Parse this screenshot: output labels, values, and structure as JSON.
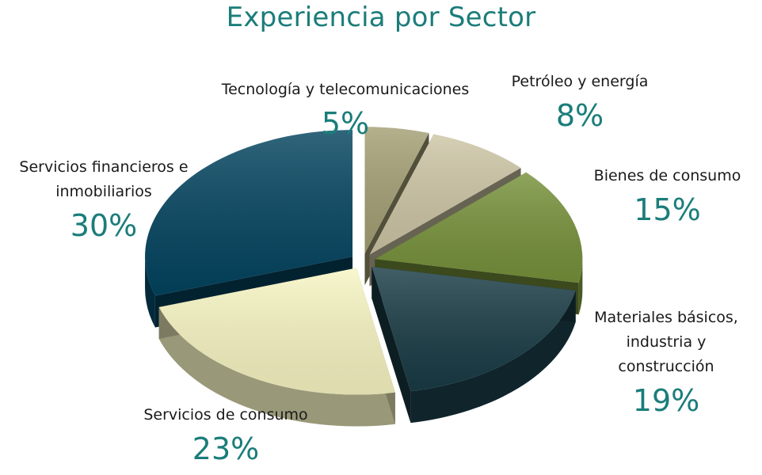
{
  "chart_data": {
    "type": "pie",
    "title": "Experiencia por Sector",
    "slices": [
      {
        "label": "Tecnología y telecomunicaciones",
        "value": 5,
        "value_label": "5%",
        "color": "#a39f74",
        "exploded": true
      },
      {
        "label": "Petróleo y energía",
        "value": 8,
        "value_label": "8%",
        "color": "#cdc5a5",
        "exploded": true
      },
      {
        "label": "Bienes de consumo",
        "value": 15,
        "value_label": "15%",
        "color": "#76913a",
        "exploded": true
      },
      {
        "label": "Materiales básicos, industria y construcción",
        "value": 19,
        "value_label": "19%",
        "color": "#193b45",
        "exploded": true
      },
      {
        "label": "Servicios de consumo",
        "value": 23,
        "value_label": "23%",
        "color": "#f7f5c2",
        "exploded": true
      },
      {
        "label": "Servicios financieros e inmobiliarios",
        "value": 30,
        "value_label": "30%",
        "color": "#03445f",
        "exploded": true
      }
    ],
    "legend": "none",
    "style": "3d-exploded-pie"
  }
}
